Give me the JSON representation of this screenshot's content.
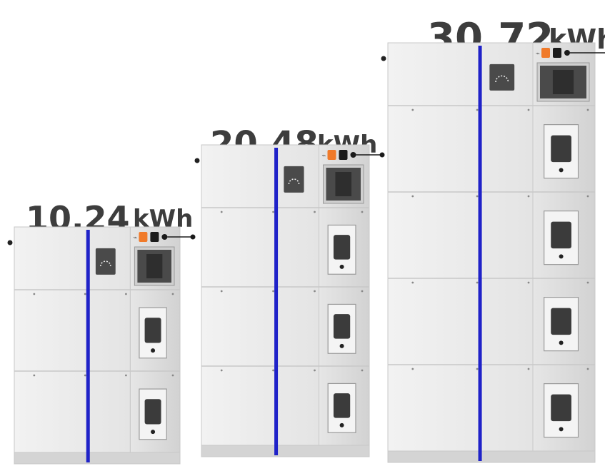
{
  "scene": "product-render",
  "colors": {
    "background": "#ffffff",
    "casing": "#e9e9e9",
    "casing_dark": "#d4d4d4",
    "seam": "#c8c8c8",
    "stripe": "#1f22c8",
    "text": "#3d3d3d",
    "connector_orange": "#f07a2a",
    "panel_dark": "#4a4a4a"
  },
  "stacks": [
    {
      "id": "small",
      "capacity_value": "10.24",
      "capacity_unit": "kWh",
      "module_count": 2
    },
    {
      "id": "medium",
      "capacity_value": "20.48",
      "capacity_unit": "kWh",
      "module_count": 3
    },
    {
      "id": "large",
      "capacity_value": "30.72",
      "capacity_unit": "kWh",
      "module_count": 4
    }
  ]
}
